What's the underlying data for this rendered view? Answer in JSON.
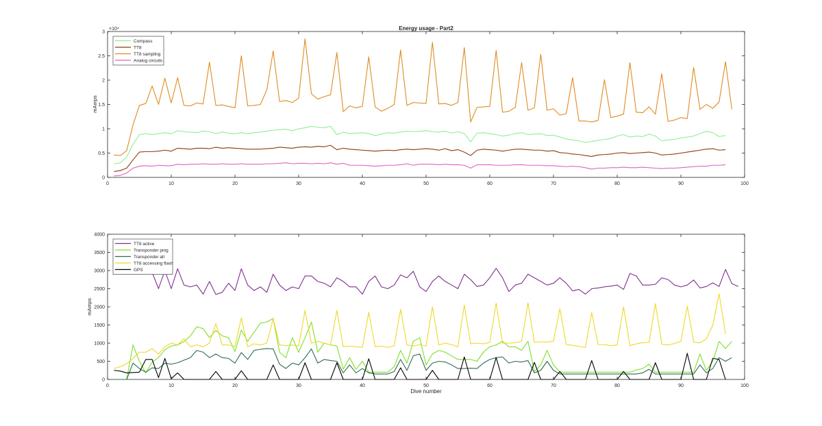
{
  "chart_data": [
    {
      "type": "line",
      "title": "Energy usage - Part2",
      "xlabel": "",
      "ylabel": "mAmps",
      "y_exponent_label": "×10⁴",
      "xlim": [
        0,
        100
      ],
      "ylim": [
        0,
        30000
      ],
      "xticks": [
        0,
        10,
        20,
        30,
        40,
        50,
        60,
        70,
        80,
        90,
        100
      ],
      "yticks": [
        0,
        5000,
        10000,
        15000,
        20000,
        25000,
        30000
      ],
      "ytick_labels": [
        "0",
        "0.5",
        "1",
        "1.5",
        "2",
        "2.5",
        "3"
      ],
      "legend_location": "top-left",
      "grid": false,
      "series": [
        {
          "name": "Compass",
          "color": "#90EE90",
          "y": [
            2800,
            3000,
            4200,
            6800,
            8800,
            9000,
            8800,
            9000,
            9200,
            9000,
            9600,
            9400,
            9300,
            9200,
            9500,
            9400,
            9000,
            9300,
            9100,
            9000,
            9200,
            9000,
            9200,
            9300,
            9500,
            9700,
            9800,
            9900,
            9600,
            10000,
            10200,
            10500,
            10300,
            10200,
            10500,
            8800,
            9300,
            9000,
            9100,
            9200,
            9000,
            8600,
            8900,
            9200,
            9100,
            9300,
            9500,
            9400,
            9500,
            9600,
            9400,
            9300,
            9500,
            9100,
            9400,
            9000,
            7300,
            9100,
            9200,
            9000,
            8800,
            8500,
            8700,
            9000,
            9200,
            8800,
            8900,
            9000,
            8600,
            8700,
            8300,
            7900,
            7700,
            7500,
            7200,
            7400,
            7600,
            7800,
            8000,
            8500,
            8800,
            8300,
            8500,
            8400,
            8900,
            8500,
            7500,
            7700,
            7800,
            8100,
            8300,
            8500,
            9000,
            9500,
            9200,
            8400,
            8600
          ]
        },
        {
          "name": "TT8",
          "color": "#8B3A0E",
          "y": [
            1200,
            1400,
            1900,
            3600,
            5200,
            5300,
            5300,
            5400,
            5600,
            5400,
            6000,
            5900,
            5800,
            6000,
            6000,
            5900,
            6200,
            6000,
            6100,
            6000,
            5900,
            5800,
            5800,
            5800,
            5900,
            6000,
            6200,
            6100,
            6000,
            6200,
            6300,
            6200,
            6400,
            6300,
            6600,
            5700,
            6000,
            5800,
            5700,
            5600,
            5500,
            5400,
            5500,
            5600,
            5500,
            5700,
            5800,
            5700,
            5800,
            5900,
            5800,
            5600,
            5900,
            5500,
            5700,
            5200,
            4500,
            5600,
            5800,
            5700,
            5600,
            5400,
            5600,
            5800,
            5800,
            5700,
            5600,
            5600,
            5400,
            5500,
            5100,
            5000,
            4800,
            4700,
            4500,
            4300,
            4600,
            4700,
            4800,
            5000,
            5100,
            4900,
            5000,
            5100,
            5200,
            5000,
            4600,
            4700,
            4800,
            5000,
            5200,
            5400,
            5600,
            5800,
            5900,
            5600,
            5700
          ]
        },
        {
          "name": "TT8 sampling",
          "color": "#E08A1E",
          "y": [
            4600,
            4500,
            5500,
            10800,
            14800,
            15200,
            18800,
            15000,
            20400,
            15300,
            20500,
            14800,
            14700,
            15300,
            15100,
            23700,
            14800,
            14900,
            14600,
            14300,
            25000,
            14700,
            14800,
            15000,
            18000,
            26000,
            15600,
            15800,
            15400,
            16300,
            28500,
            17200,
            16100,
            16600,
            17000,
            25700,
            13500,
            14700,
            14300,
            14600,
            24800,
            14500,
            13600,
            14200,
            15000,
            26200,
            14800,
            15400,
            15300,
            15200,
            27800,
            15100,
            15200,
            14800,
            15400,
            26700,
            11400,
            14400,
            14500,
            14600,
            26100,
            13400,
            13600,
            14400,
            23600,
            13800,
            14300,
            25300,
            13800,
            14100,
            12800,
            13100,
            20500,
            11600,
            11600,
            11400,
            11700,
            20100,
            12300,
            12600,
            13000,
            23600,
            13400,
            13300,
            14500,
            13000,
            21300,
            11500,
            11800,
            12300,
            12100,
            22600,
            14000,
            15000,
            14200,
            15500,
            23800,
            14000
          ]
        },
        {
          "name": "Analog circuits",
          "color": "#E060C0",
          "y": [
            300,
            400,
            900,
            1900,
            2300,
            2400,
            2300,
            2500,
            2400,
            2400,
            2700,
            2600,
            2700,
            2700,
            2800,
            2700,
            2700,
            2800,
            2700,
            2700,
            2800,
            2700,
            2700,
            2700,
            2800,
            2800,
            2900,
            3000,
            2800,
            2900,
            2900,
            2800,
            2900,
            2800,
            3000,
            2700,
            2900,
            2500,
            2500,
            2500,
            2400,
            2300,
            2400,
            2500,
            2500,
            2600,
            2800,
            2500,
            2700,
            2700,
            2700,
            2600,
            2700,
            2600,
            2600,
            2500,
            1900,
            2600,
            2600,
            2600,
            2500,
            2500,
            2500,
            2600,
            2600,
            2500,
            2500,
            2500,
            2400,
            2400,
            2300,
            2200,
            2300,
            2200,
            2000,
            1700,
            1900,
            1900,
            2000,
            2000,
            2100,
            2000,
            2000,
            2100,
            2000,
            1900,
            1800,
            1900,
            1900,
            2000,
            2100,
            2200,
            2300,
            2300,
            2500,
            2500,
            2600
          ]
        }
      ]
    },
    {
      "type": "line",
      "title": "",
      "xlabel": "Dive number",
      "ylabel": "mAmps",
      "xlim": [
        0,
        100
      ],
      "ylim": [
        0,
        4000
      ],
      "xticks": [
        0,
        10,
        20,
        30,
        40,
        50,
        60,
        70,
        80,
        90,
        100
      ],
      "yticks": [
        0,
        500,
        1000,
        1500,
        2000,
        2500,
        3000,
        3500,
        4000
      ],
      "legend_location": "top-left",
      "grid": false,
      "series": [
        {
          "name": "TT8 active",
          "color": "#7E2F8E",
          "y": [
            null,
            null,
            null,
            null,
            null,
            null,
            2950,
            2500,
            3000,
            2500,
            3050,
            2600,
            2550,
            2600,
            2350,
            2700,
            2340,
            2400,
            2650,
            2450,
            3050,
            2600,
            2450,
            2550,
            2400,
            2900,
            2600,
            2450,
            2550,
            2500,
            2850,
            2850,
            2700,
            2650,
            2550,
            2800,
            2700,
            2550,
            2550,
            2350,
            2700,
            2850,
            2550,
            2500,
            2600,
            2880,
            2800,
            2980,
            2550,
            2420,
            2700,
            2850,
            2700,
            2600,
            2500,
            2900,
            2750,
            2560,
            2600,
            2800,
            3060,
            2800,
            2420,
            2600,
            2650,
            2900,
            2800,
            2700,
            2600,
            2650,
            2800,
            2650,
            2440,
            2480,
            2350,
            2500,
            2520,
            2550,
            2570,
            2600,
            2480,
            2920,
            2850,
            2600,
            2600,
            2620,
            2800,
            2750,
            2600,
            2550,
            2600,
            2740,
            2520,
            2560,
            2660,
            2560,
            3030,
            2640,
            2560
          ]
        },
        {
          "name": "Transponder ping",
          "color": "#7CE02A",
          "y": [
            0,
            0,
            0,
            950,
            500,
            180,
            480,
            600,
            820,
            920,
            950,
            1040,
            1200,
            1450,
            1400,
            1150,
            1350,
            1200,
            1150,
            770,
            1360,
            1050,
            1300,
            1550,
            1580,
            1680,
            750,
            600,
            1150,
            750,
            1150,
            1580,
            750,
            1000,
            950,
            920,
            280,
            600,
            280,
            500,
            200,
            200,
            200,
            200,
            350,
            800,
            450,
            1050,
            1150,
            400,
            700,
            800,
            750,
            650,
            550,
            550,
            550,
            500,
            750,
            900,
            950,
            1050,
            900,
            900,
            800,
            1050,
            220,
            400,
            800,
            400,
            200,
            200,
            200,
            200,
            200,
            200,
            200,
            200,
            200,
            200,
            200,
            200,
            260,
            300,
            420,
            200,
            200,
            200,
            200,
            200,
            200,
            200,
            700,
            250,
            500,
            1050,
            850,
            1050
          ]
        },
        {
          "name": "Transponder all",
          "color": "#2E6B52",
          "y": [
            0,
            0,
            0,
            450,
            300,
            200,
            320,
            300,
            450,
            420,
            460,
            530,
            600,
            800,
            750,
            600,
            700,
            600,
            580,
            450,
            740,
            550,
            800,
            830,
            850,
            840,
            420,
            300,
            450,
            400,
            600,
            840,
            450,
            550,
            520,
            500,
            180,
            400,
            180,
            300,
            180,
            150,
            150,
            150,
            220,
            550,
            250,
            650,
            700,
            250,
            450,
            500,
            480,
            400,
            300,
            300,
            310,
            300,
            450,
            550,
            600,
            620,
            450,
            500,
            480,
            520,
            180,
            250,
            500,
            250,
            150,
            150,
            150,
            150,
            150,
            150,
            150,
            150,
            150,
            150,
            150,
            150,
            150,
            180,
            280,
            150,
            150,
            150,
            150,
            150,
            150,
            150,
            400,
            180,
            300,
            600,
            500,
            600
          ]
        },
        {
          "name": "TT8 accessing flash",
          "color": "#F2D623",
          "y": [
            300,
            350,
            430,
            580,
            750,
            750,
            850,
            700,
            900,
            1000,
            950,
            1120,
            900,
            950,
            900,
            1000,
            1540,
            950,
            950,
            900,
            1700,
            900,
            980,
            950,
            1000,
            1670,
            950,
            930,
            950,
            920,
            1900,
            1000,
            1050,
            1000,
            950,
            1900,
            900,
            920,
            900,
            880,
            1850,
            900,
            920,
            880,
            930,
            1930,
            950,
            920,
            960,
            920,
            2000,
            950,
            1000,
            960,
            900,
            2050,
            980,
            1000,
            980,
            1020,
            2100,
            1000,
            1000,
            1010,
            1050,
            2110,
            1020,
            1040,
            1030,
            1050,
            1950,
            960,
            940,
            910,
            880,
            1840,
            960,
            960,
            930,
            950,
            2000,
            930,
            980,
            1010,
            1020,
            2090,
            970,
            950,
            990,
            1050,
            2020,
            1030,
            1010,
            1120,
            1490,
            2360,
            1250
          ]
        },
        {
          "name": "GPS",
          "color": "#000000",
          "y": [
            250,
            230,
            180,
            190,
            200,
            550,
            550,
            50,
            580,
            20,
            180,
            0,
            0,
            0,
            0,
            0,
            220,
            0,
            0,
            0,
            240,
            0,
            0,
            0,
            0,
            400,
            0,
            0,
            0,
            0,
            460,
            0,
            0,
            0,
            0,
            460,
            0,
            0,
            0,
            0,
            570,
            0,
            0,
            0,
            0,
            320,
            0,
            0,
            0,
            0,
            250,
            0,
            0,
            0,
            0,
            620,
            0,
            0,
            0,
            0,
            600,
            0,
            0,
            0,
            0,
            0,
            470,
            0,
            0,
            0,
            220,
            0,
            0,
            0,
            0,
            520,
            0,
            0,
            0,
            0,
            220,
            0,
            0,
            0,
            0,
            460,
            0,
            0,
            0,
            0,
            720,
            0,
            0,
            0,
            580,
            550,
            0
          ]
        }
      ]
    }
  ]
}
